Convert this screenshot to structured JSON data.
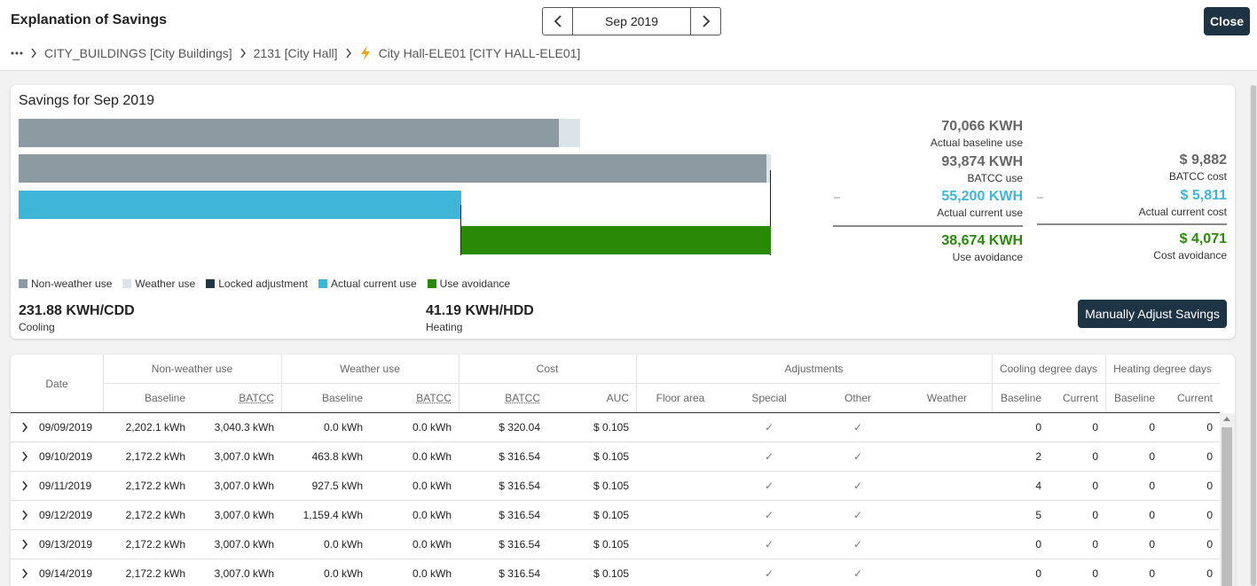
{
  "header": {
    "title": "Explanation of Savings",
    "month": "Sep 2019",
    "close_label": "Close"
  },
  "breadcrumb": [
    "CITY_BUILDINGS [City Buildings]",
    "2131 [City Hall]",
    "City Hall-ELE01 [CITY HALL-ELE01]"
  ],
  "savings": {
    "title": "Savings for Sep 2019",
    "actual_baseline": {
      "value": "70,066 KWH",
      "label": "Actual baseline use"
    },
    "batcc_use": {
      "value": "93,874 KWH",
      "label": "BATCC use"
    },
    "actual_current_use": {
      "value": "55,200 KWH",
      "label": "Actual current use"
    },
    "use_avoidance": {
      "value": "38,674 KWH",
      "label": "Use avoidance"
    },
    "batcc_cost": {
      "value": "$ 9,882",
      "label": "BATCC cost"
    },
    "actual_current_cost": {
      "value": "$ 5,811",
      "label": "Actual current cost"
    },
    "cost_avoidance": {
      "value": "$ 4,071",
      "label": "Cost avoidance"
    },
    "legend": [
      {
        "label": "Non-weather use",
        "color": "#8c9aa2"
      },
      {
        "label": "Weather use",
        "color": "#dde4e8"
      },
      {
        "label": "Locked adjustment",
        "color": "#243746"
      },
      {
        "label": "Actual current use",
        "color": "#3fb6d8"
      },
      {
        "label": "Use avoidance",
        "color": "#2a8a07"
      }
    ],
    "cooling": {
      "value": "231.88 KWH/CDD",
      "label": "Cooling"
    },
    "heating": {
      "value": "41.19 KWH/HDD",
      "label": "Heating"
    },
    "adjust_button": "Manually Adjust Savings",
    "colors": {
      "gray": "#8c9aa2",
      "blue": "#3fb6d8",
      "green": "#2a8a07"
    }
  },
  "table": {
    "headers": {
      "date": "Date",
      "non_weather": "Non-weather use",
      "weather": "Weather use",
      "cost": "Cost",
      "adjustments": "Adjustments",
      "cdd": "Cooling degree days",
      "hdd": "Heating degree days",
      "baseline": "Baseline",
      "batcc": "BATCC",
      "auc": "AUC",
      "floor_area": "Floor area",
      "special": "Special",
      "other": "Other",
      "weather_adj": "Weather",
      "current": "Current"
    },
    "rows": [
      {
        "date": "09/09/2019",
        "nw_base": "2,202.1 kWh",
        "nw_batcc": "3,040.3 kWh",
        "w_base": "0.0 kWh",
        "w_batcc": "0.0 kWh",
        "cost_batcc": "$ 320.04",
        "auc": "$ 0.105",
        "special": "✓",
        "other": "✓",
        "cdd_base": "0",
        "cdd_cur": "0",
        "hdd_base": "0",
        "hdd_cur": "0"
      },
      {
        "date": "09/10/2019",
        "nw_base": "2,172.2 kWh",
        "nw_batcc": "3,007.0 kWh",
        "w_base": "463.8 kWh",
        "w_batcc": "0.0 kWh",
        "cost_batcc": "$ 316.54",
        "auc": "$ 0.105",
        "special": "✓",
        "other": "✓",
        "cdd_base": "2",
        "cdd_cur": "0",
        "hdd_base": "0",
        "hdd_cur": "0"
      },
      {
        "date": "09/11/2019",
        "nw_base": "2,172.2 kWh",
        "nw_batcc": "3,007.0 kWh",
        "w_base": "927.5 kWh",
        "w_batcc": "0.0 kWh",
        "cost_batcc": "$ 316.54",
        "auc": "$ 0.105",
        "special": "✓",
        "other": "✓",
        "cdd_base": "4",
        "cdd_cur": "0",
        "hdd_base": "0",
        "hdd_cur": "0"
      },
      {
        "date": "09/12/2019",
        "nw_base": "2,172.2 kWh",
        "nw_batcc": "3,007.0 kWh",
        "w_base": "1,159.4 kWh",
        "w_batcc": "0.0 kWh",
        "cost_batcc": "$ 316.54",
        "auc": "$ 0.105",
        "special": "✓",
        "other": "✓",
        "cdd_base": "5",
        "cdd_cur": "0",
        "hdd_base": "0",
        "hdd_cur": "0"
      },
      {
        "date": "09/13/2019",
        "nw_base": "2,172.2 kWh",
        "nw_batcc": "3,007.0 kWh",
        "w_base": "0.0 kWh",
        "w_batcc": "0.0 kWh",
        "cost_batcc": "$ 316.54",
        "auc": "$ 0.105",
        "special": "✓",
        "other": "✓",
        "cdd_base": "0",
        "cdd_cur": "0",
        "hdd_base": "0",
        "hdd_cur": "0"
      },
      {
        "date": "09/14/2019",
        "nw_base": "2,172.2 kWh",
        "nw_batcc": "3,007.0 kWh",
        "w_base": "0.0 kWh",
        "w_batcc": "0.0 kWh",
        "cost_batcc": "$ 316.54",
        "auc": "$ 0.105",
        "special": "✓",
        "other": "✓",
        "cdd_base": "0",
        "cdd_cur": "0",
        "hdd_base": "0",
        "hdd_cur": "0"
      }
    ]
  }
}
